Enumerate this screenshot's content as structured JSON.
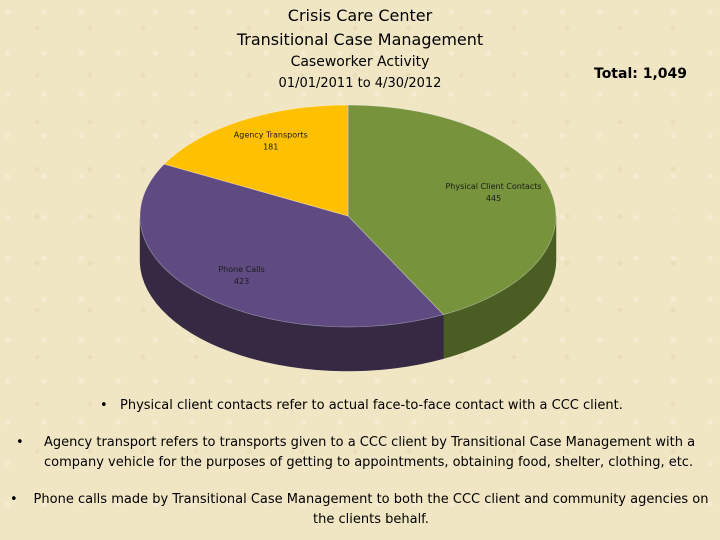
{
  "header": {
    "line1": "Crisis Care Center",
    "line2": "Transitional Case Management",
    "line3": "Caseworker Activity",
    "date_range": "01/01/2011 to 4/30/2012",
    "total": "Total: 1,049"
  },
  "chart_data": {
    "type": "pie",
    "title": "Caseworker Activity",
    "slices": [
      {
        "name": "Physical Client Contacts",
        "value": 445,
        "label": "445",
        "color": "#77933c",
        "side_color": "#4a5d22"
      },
      {
        "name": "Phone Calls",
        "value": 423,
        "label": "423",
        "color": "#5f4b82",
        "side_color": "#352943"
      },
      {
        "name": "Agency Transports",
        "value": 181,
        "label": "181",
        "color": "#ffc000",
        "side_color": "#a67c00"
      }
    ],
    "total": 1049,
    "style": "3d"
  },
  "notes": [
    {
      "bullet": "•",
      "text": "Physical client contacts refer to actual face-to-face contact with a CCC client."
    },
    {
      "bullet": "•",
      "text": "Agency transport refers to transports  given to a CCC client by Transitional Case Management with a company vehicle for the purposes of getting to appointments, obtaining food, shelter, clothing, etc."
    },
    {
      "bullet": "•",
      "text": "Phone calls made by Transitional Case Management to both the CCC client and community agencies on the clients behalf."
    }
  ]
}
